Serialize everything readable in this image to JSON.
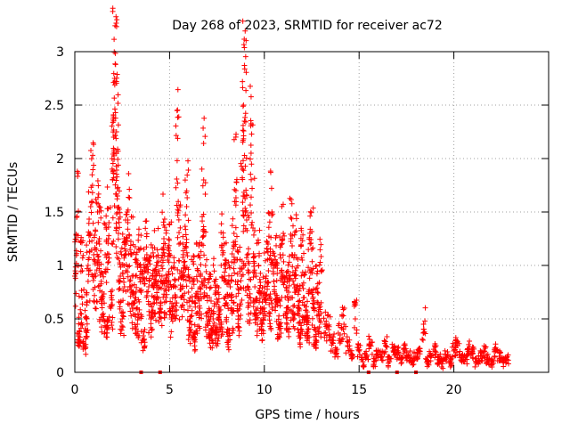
{
  "chart_data": {
    "type": "scatter",
    "title": "Day 268 of 2023, SRMTID for receiver ac72",
    "xlabel": "GPS time / hours",
    "ylabel": "SRMTID / TECUs",
    "xlim": [
      0,
      25
    ],
    "ylim": [
      0,
      3
    ],
    "x_ticks": [
      0,
      5,
      10,
      15,
      20
    ],
    "x_tick_labels": [
      "0",
      "5",
      "10",
      "15",
      "20"
    ],
    "y_ticks": [
      0,
      0.5,
      1,
      1.5,
      2,
      2.5,
      3
    ],
    "y_tick_labels": [
      "0",
      "0.5",
      "1",
      "1.5",
      "2",
      "2.5",
      "3"
    ],
    "grid": true,
    "marker": "+",
    "color": "#ff0000",
    "series": [
      {
        "name": "SRMTID",
        "x": [
          0.0,
          0.1,
          0.2,
          0.3,
          0.4,
          0.5,
          0.6,
          0.7,
          0.8,
          0.9,
          1.0,
          1.1,
          1.2,
          1.3,
          1.4,
          1.5,
          1.6,
          1.7,
          1.8,
          1.9,
          2.0,
          2.05,
          2.1,
          2.15,
          2.2,
          2.25,
          2.3,
          2.4,
          2.5,
          2.6,
          2.7,
          2.8,
          2.9,
          3.0,
          3.1,
          3.2,
          3.3,
          3.4,
          3.5,
          3.6,
          3.7,
          3.8,
          3.9,
          4.0,
          4.1,
          4.2,
          4.3,
          4.4,
          4.5,
          4.6,
          4.7,
          4.8,
          4.9,
          5.0,
          5.1,
          5.2,
          5.3,
          5.4,
          5.5,
          5.6,
          5.7,
          5.8,
          5.9,
          6.0,
          6.1,
          6.2,
          6.3,
          6.4,
          6.5,
          6.6,
          6.7,
          6.8,
          6.9,
          7.0,
          7.1,
          7.2,
          7.3,
          7.4,
          7.5,
          7.6,
          7.7,
          7.8,
          7.9,
          8.0,
          8.1,
          8.2,
          8.3,
          8.4,
          8.5,
          8.6,
          8.7,
          8.8,
          8.85,
          8.9,
          8.95,
          9.0,
          9.1,
          9.2,
          9.3,
          9.4,
          9.5,
          9.6,
          9.7,
          9.8,
          9.9,
          10.0,
          10.1,
          10.2,
          10.3,
          10.4,
          10.5,
          10.6,
          10.7,
          10.8,
          10.9,
          11.0,
          11.1,
          11.2,
          11.3,
          11.4,
          11.5,
          11.6,
          11.7,
          11.8,
          11.9,
          12.0,
          12.1,
          12.2,
          12.3,
          12.4,
          12.5,
          12.6,
          12.7,
          12.8,
          12.9,
          13.0,
          13.2,
          13.4,
          13.6,
          13.8,
          14.0,
          14.2,
          14.4,
          14.6,
          14.8,
          15.0,
          15.2,
          15.4,
          15.6,
          15.8,
          16.0,
          16.2,
          16.4,
          16.6,
          16.8,
          17.0,
          17.2,
          17.4,
          17.6,
          17.8,
          18.0,
          18.2,
          18.4,
          18.6,
          18.8,
          19.0,
          19.2,
          19.4,
          19.6,
          19.8,
          20.0,
          20.2,
          20.4,
          20.6,
          20.8,
          21.0,
          21.2,
          21.4,
          21.6,
          21.8,
          22.0,
          22.2,
          22.4,
          22.6,
          22.8
        ],
        "y": [
          0.9,
          1.45,
          0.3,
          0.55,
          0.95,
          0.25,
          0.5,
          1.0,
          1.3,
          1.6,
          1.1,
          0.9,
          1.5,
          1.2,
          0.7,
          0.55,
          1.1,
          0.4,
          1.4,
          0.6,
          1.8,
          2.2,
          2.75,
          2.88,
          2.25,
          1.65,
          1.3,
          0.9,
          0.5,
          1.0,
          1.2,
          1.4,
          0.8,
          1.1,
          0.6,
          0.9,
          0.45,
          1.0,
          0.75,
          0.3,
          0.95,
          1.1,
          0.8,
          0.5,
          0.9,
          0.65,
          1.0,
          0.85,
          0.6,
          0.9,
          1.25,
          0.7,
          1.05,
          1.1,
          0.5,
          0.8,
          0.65,
          1.98,
          1.2,
          0.7,
          0.9,
          1.0,
          1.55,
          0.75,
          0.4,
          0.85,
          0.3,
          0.55,
          0.95,
          0.6,
          1.2,
          1.8,
          1.0,
          0.45,
          0.7,
          0.3,
          0.5,
          0.85,
          0.35,
          0.6,
          0.45,
          1.1,
          0.9,
          0.65,
          0.3,
          0.8,
          0.55,
          1.3,
          1.7,
          0.85,
          0.5,
          0.9,
          1.9,
          2.5,
          2.35,
          1.5,
          1.1,
          0.7,
          2.05,
          1.35,
          0.8,
          0.5,
          1.0,
          0.6,
          0.45,
          0.75,
          0.9,
          1.2,
          0.55,
          1.5,
          0.85,
          1.0,
          0.65,
          0.4,
          0.95,
          1.3,
          0.7,
          0.45,
          0.9,
          1.25,
          0.55,
          1.1,
          0.8,
          0.6,
          0.35,
          1.05,
          0.7,
          0.5,
          0.4,
          0.95,
          1.15,
          0.6,
          0.3,
          0.75,
          0.5,
          0.95,
          0.45,
          0.4,
          0.3,
          0.2,
          0.35,
          0.45,
          0.25,
          0.15,
          0.5,
          0.2,
          0.1,
          0.15,
          0.25,
          0.1,
          0.2,
          0.15,
          0.25,
          0.1,
          0.2,
          0.18,
          0.12,
          0.2,
          0.15,
          0.1,
          0.14,
          0.2,
          0.45,
          0.1,
          0.15,
          0.2,
          0.12,
          0.08,
          0.15,
          0.1,
          0.2,
          0.25,
          0.15,
          0.12,
          0.22,
          0.18,
          0.1,
          0.15,
          0.2,
          0.12,
          0.1,
          0.2,
          0.15,
          0.1,
          0.12
        ]
      }
    ],
    "bottom_markers_x": [
      3.5,
      4.5,
      15.5,
      17.0,
      18.0
    ]
  }
}
